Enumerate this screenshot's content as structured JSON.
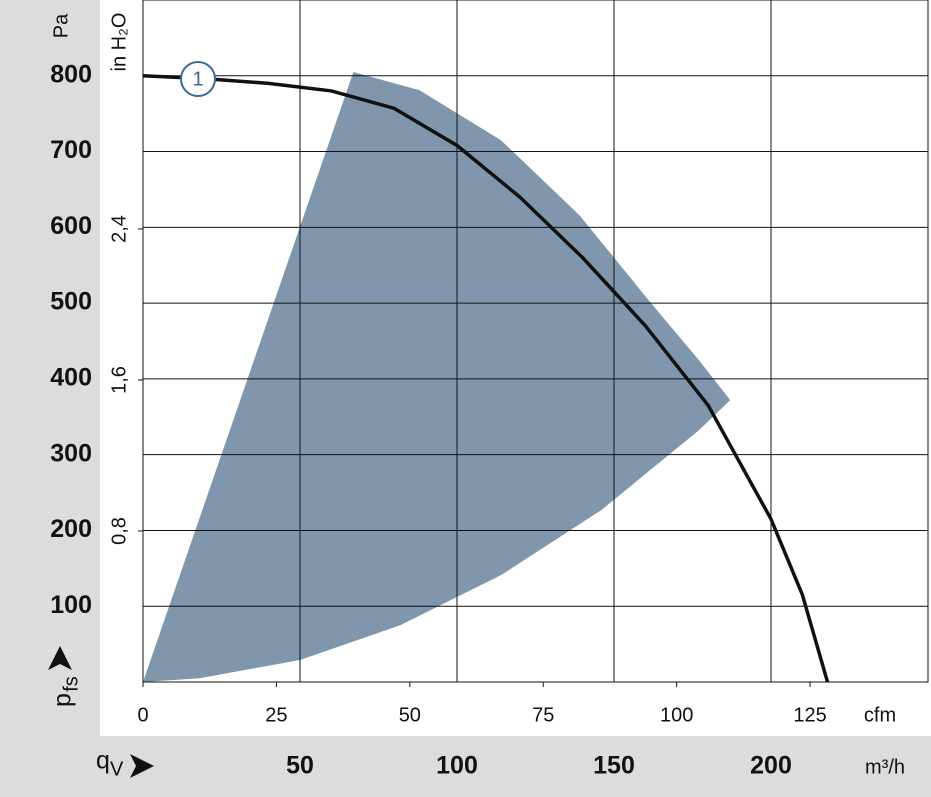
{
  "chart_data": {
    "type": "line",
    "x_label": "m³/h",
    "x_symbol": "q",
    "x_symbol_sub": "V",
    "x2_label": "cfm",
    "y_label": "Pa",
    "y_symbol": "p",
    "y_symbol_sub": "fs",
    "y2_label": "in H₂O",
    "xlim": [
      0,
      250
    ],
    "xticks": [
      50,
      100,
      150,
      200
    ],
    "x2lim": [
      0,
      147.1
    ],
    "x2ticks": [
      0,
      25,
      50,
      75,
      100,
      125
    ],
    "ylim": [
      0,
      900
    ],
    "yticks": [
      100,
      200,
      300,
      400,
      500,
      600,
      700,
      800
    ],
    "y2lim": [
      0,
      3.613
    ],
    "y2ticks": [
      {
        "value": 0.8,
        "label": "0,8"
      },
      {
        "value": 1.6,
        "label": "1,6"
      },
      {
        "value": 2.4,
        "label": "2,4"
      }
    ],
    "grid": true,
    "region": {
      "color": "#7f96ad",
      "x": [
        0,
        67,
        88,
        114,
        139,
        161,
        177,
        187,
        177,
        146,
        114,
        82,
        50,
        18
      ],
      "y": [
        0,
        805,
        781,
        715,
        616,
        504,
        425,
        372,
        332,
        227,
        141,
        75,
        29,
        5
      ]
    },
    "series": [
      {
        "name": "1",
        "color": "#111111",
        "x": [
          0,
          20,
          40,
          60,
          80,
          100,
          120,
          140,
          160,
          180,
          200,
          210,
          218
        ],
        "values": [
          800,
          796,
          790,
          780,
          757,
          708,
          640,
          560,
          470,
          365,
          215,
          115,
          0
        ]
      }
    ]
  }
}
